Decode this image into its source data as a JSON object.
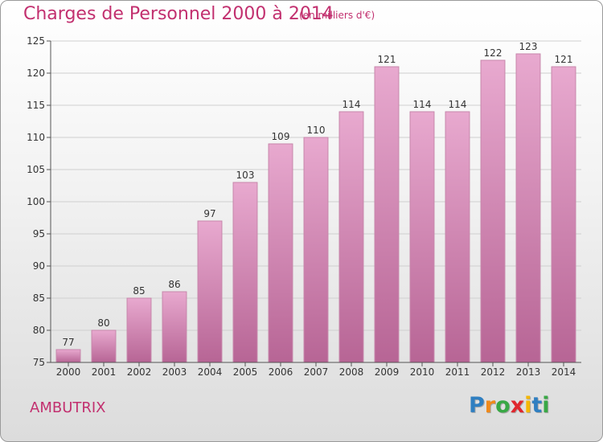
{
  "header": {
    "title": "Charges de Personnel 2000 à 2014",
    "subtitle": "(en milliers d'€)"
  },
  "footer": {
    "commune": "AMBUTRIX",
    "logo_text": "Proxiti",
    "logo_colors": [
      "#2f7fc1",
      "#f08a1c",
      "#39a845",
      "#e0262d",
      "#f5b700",
      "#2f7fc1",
      "#39a845"
    ]
  },
  "colors": {
    "accent": "#c2306f",
    "bar_top": "#e8a9cf",
    "bar_bottom": "#b76595",
    "bar_edge": "#c787ab"
  },
  "chart_data": {
    "type": "bar",
    "categories": [
      "2000",
      "2001",
      "2002",
      "2003",
      "2004",
      "2005",
      "2006",
      "2007",
      "2008",
      "2009",
      "2010",
      "2011",
      "2012",
      "2013",
      "2014"
    ],
    "values": [
      77,
      80,
      85,
      86,
      97,
      103,
      109,
      110,
      114,
      121,
      114,
      114,
      122,
      123,
      121
    ],
    "ylim": [
      75,
      125
    ],
    "yticks": [
      75,
      80,
      85,
      90,
      95,
      100,
      105,
      110,
      115,
      120,
      125
    ],
    "grid": true,
    "data_labels": true
  }
}
